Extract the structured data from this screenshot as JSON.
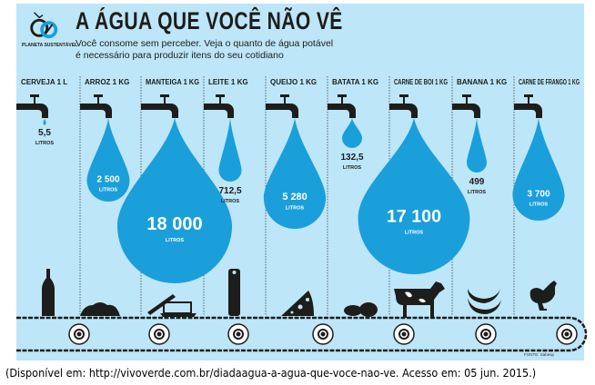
{
  "header": {
    "title": "A ÁGUA QUE VOCÊ NÃO VÊ",
    "subtitle_line1": "Você consome sem perceber. Veja o quanto de água potável",
    "subtitle_line2": "é necessário para produzir itens do seu cotidiano",
    "logo_text": "PLANETA SUSTENTÁVEL"
  },
  "colors": {
    "background": "#bde6f8",
    "drop": "#1a9fdb",
    "dark": "#1d1d1b"
  },
  "chart_data": {
    "type": "pictorial-bubble",
    "unit_label": "LITROS",
    "categories": [
      "CERVEJA 1 L",
      "ARROZ 1 KG",
      "MANTEIGA 1 KG",
      "LEITE 1 KG",
      "QUEIJO 1 KG",
      "BATATA 1 KG",
      "CARNE DE BOI 1 KG",
      "BANANA 1 KG",
      "CARNE DE FRANGO 1 KG"
    ],
    "value_labels": [
      "5,5",
      "2 500",
      "18 000",
      "712,5",
      "5 280",
      "132,5",
      "17 100",
      "499",
      "3 700"
    ],
    "values": [
      5.5,
      2500,
      18000,
      712.5,
      5280,
      132.5,
      17100,
      499,
      3700
    ],
    "items": [
      "beer-bottle",
      "rice",
      "butter",
      "milk-carton",
      "cheese",
      "potatoes",
      "cow",
      "bananas",
      "chicken"
    ]
  },
  "footer": {
    "source": "FONTE: Sabesp",
    "caption": "(Disponível em: http://vivoverde.com.br/diadaagua-a-agua-que-voce-nao-ve. Acesso em: 05 jun. 2015.)"
  }
}
